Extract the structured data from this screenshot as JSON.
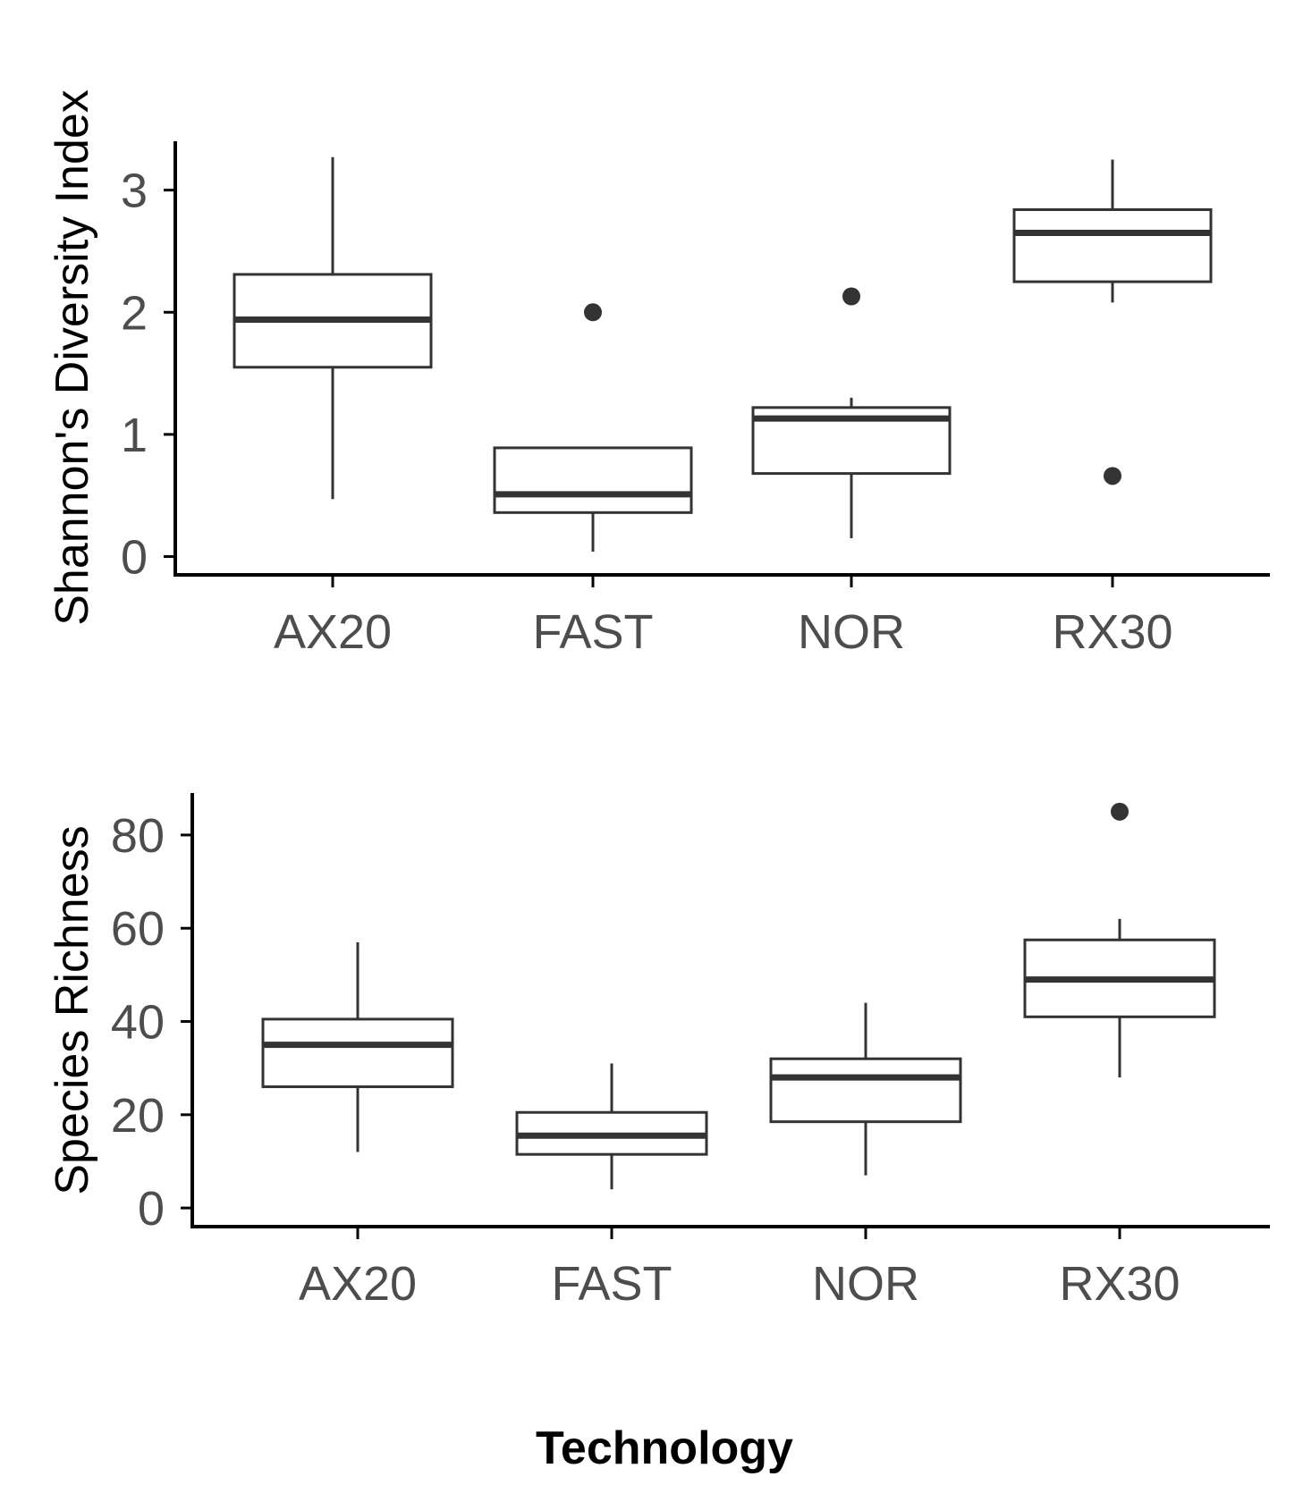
{
  "colors": {
    "axis": "#000000",
    "box_stroke": "#333333",
    "outlier": "#333333",
    "tick_text": "#4d4d4d",
    "background": "#ffffff"
  },
  "x_title": "Technology",
  "chart_data": [
    {
      "type": "boxplot",
      "ylabel": "Shannon's Diversity Index",
      "xlabel": "Technology",
      "categories": [
        "AX20",
        "FAST",
        "NOR",
        "RX30"
      ],
      "ylim": [
        -0.15,
        3.4
      ],
      "yticks": [
        0,
        1,
        2,
        3
      ],
      "ytick_labels": [
        "0",
        "1",
        "2",
        "3"
      ],
      "grid": false,
      "series": [
        {
          "name": "AX20",
          "min": 0.47,
          "q1": 1.55,
          "median": 1.94,
          "q3": 2.31,
          "max": 3.27,
          "outliers": []
        },
        {
          "name": "FAST",
          "min": 0.04,
          "q1": 0.36,
          "median": 0.51,
          "q3": 0.89,
          "max": 0.89,
          "outliers": [
            2.0
          ]
        },
        {
          "name": "NOR",
          "min": 0.15,
          "q1": 0.68,
          "median": 1.13,
          "q3": 1.22,
          "max": 1.3,
          "outliers": [
            2.13
          ]
        },
        {
          "name": "RX30",
          "min": 2.08,
          "q1": 2.25,
          "median": 2.65,
          "q3": 2.84,
          "max": 3.25,
          "outliers": [
            0.66
          ]
        }
      ]
    },
    {
      "type": "boxplot",
      "ylabel": "Species Richness",
      "xlabel": "Technology",
      "categories": [
        "AX20",
        "FAST",
        "NOR",
        "RX30"
      ],
      "ylim": [
        -4,
        89
      ],
      "yticks": [
        0,
        20,
        40,
        60,
        80
      ],
      "ytick_labels": [
        "0",
        "20",
        "40",
        "60",
        "80"
      ],
      "grid": false,
      "series": [
        {
          "name": "AX20",
          "min": 12,
          "q1": 26,
          "median": 35,
          "q3": 40.5,
          "max": 57,
          "outliers": []
        },
        {
          "name": "FAST",
          "min": 4,
          "q1": 11.5,
          "median": 15.5,
          "q3": 20.5,
          "max": 31,
          "outliers": []
        },
        {
          "name": "NOR",
          "min": 7,
          "q1": 18.5,
          "median": 28,
          "q3": 32,
          "max": 44,
          "outliers": []
        },
        {
          "name": "RX30",
          "min": 28,
          "q1": 41,
          "median": 49,
          "q3": 57.5,
          "max": 62,
          "outliers": [
            85
          ]
        }
      ]
    }
  ]
}
